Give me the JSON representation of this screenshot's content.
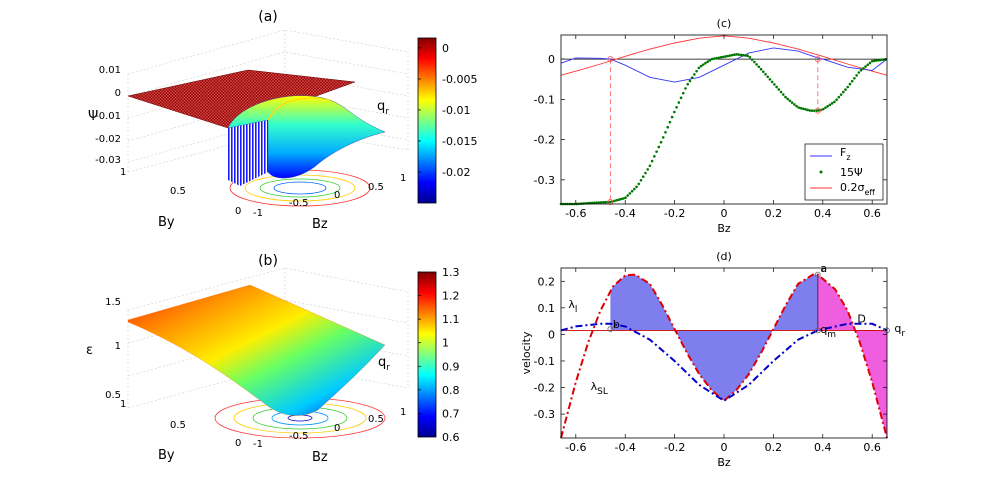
{
  "panels": {
    "a": {
      "title": "(a)",
      "zlabel": "Ψ",
      "xlabel": "Bz",
      "ylabel": "By",
      "annotation": "q",
      "annotation_sub": "r",
      "zticks": [
        "0.01",
        "0",
        "-0.01",
        "-0.02",
        "-0.03"
      ],
      "byticks": [
        "1",
        "0.5",
        "0"
      ],
      "bzticks": [
        "-1",
        "-0.5",
        "0",
        "0.5",
        "1"
      ],
      "colorbar_ticks": [
        "0",
        "-0.005",
        "-0.01",
        "-0.015",
        "-0.02"
      ],
      "colorbar_range": [
        -0.025,
        0.0016
      ]
    },
    "b": {
      "title": "(b)",
      "zlabel": "ε",
      "xlabel": "Bz",
      "ylabel": "By",
      "annotation": "q",
      "annotation_sub": "r",
      "zticks": [
        "1.5",
        "1",
        "0.5"
      ],
      "byticks": [
        "1",
        "0.5",
        "0"
      ],
      "bzticks": [
        "-1",
        "-0.5",
        "0",
        "0.5",
        "1"
      ],
      "colorbar_ticks": [
        "1.3",
        "1.2",
        "1.1",
        "1",
        "0.9",
        "0.8",
        "0.7",
        "0.6"
      ],
      "colorbar_range": [
        0.6,
        1.3
      ]
    }
  },
  "colors": {
    "fz": "#3333ff",
    "psi": "#007700",
    "sigma": "#ff3333",
    "lambda_l": "#0000cc",
    "lambda_sl": "#dd0000",
    "fill_blue": "#7777ee",
    "fill_magenta": "#ee55dd"
  },
  "chart_data": [
    {
      "type": "line",
      "title": "(c)",
      "xlabel": "Bz",
      "ylabel": "",
      "xlim": [
        -0.66,
        0.66
      ],
      "ylim": [
        -0.36,
        0.06
      ],
      "xticks": [
        -0.6,
        -0.4,
        -0.2,
        0,
        0.2,
        0.4,
        0.6
      ],
      "yticks": [
        0,
        -0.1,
        -0.2,
        -0.3
      ],
      "xtick_labels": [
        "-0.6",
        "-0.4",
        "-0.2",
        "0",
        "0.2",
        "0.4",
        "0.6"
      ],
      "ytick_labels": [
        "0",
        "-0.1",
        "-0.2",
        "-0.3"
      ],
      "legend": [
        "F_z",
        "15Ψ",
        "0.2σ_eff"
      ],
      "legend_placement": "bottom-right",
      "marked_points": [
        [
          -0.46,
          0.0
        ],
        [
          -0.46,
          -0.355
        ],
        [
          0.38,
          0.0
        ],
        [
          0.38,
          -0.128
        ]
      ],
      "series": [
        {
          "name": "F_z",
          "x": [
            -0.66,
            -0.6,
            -0.5,
            -0.46,
            -0.4,
            -0.3,
            -0.2,
            -0.1,
            0,
            0.1,
            0.2,
            0.3,
            0.38,
            0.4,
            0.5,
            0.6,
            0.66
          ],
          "y": [
            -0.01,
            0.003,
            0.002,
            0.0,
            -0.015,
            -0.045,
            -0.057,
            -0.045,
            -0.015,
            0.015,
            0.028,
            0.02,
            0.003,
            0.0,
            -0.02,
            -0.028,
            0.0
          ]
        },
        {
          "name": "15Ψ",
          "x": [
            -0.66,
            -0.6,
            -0.55,
            -0.5,
            -0.46,
            -0.4,
            -0.35,
            -0.3,
            -0.25,
            -0.2,
            -0.15,
            -0.1,
            -0.05,
            0,
            0.05,
            0.1,
            0.15,
            0.2,
            0.25,
            0.3,
            0.35,
            0.38,
            0.4,
            0.45,
            0.5,
            0.55,
            0.6,
            0.66
          ],
          "y": [
            -0.36,
            -0.36,
            -0.358,
            -0.356,
            -0.355,
            -0.345,
            -0.315,
            -0.265,
            -0.2,
            -0.13,
            -0.065,
            -0.02,
            0.0,
            0.006,
            0.012,
            0.008,
            -0.025,
            -0.06,
            -0.095,
            -0.12,
            -0.128,
            -0.128,
            -0.125,
            -0.105,
            -0.07,
            -0.03,
            -0.005,
            0.0
          ]
        },
        {
          "name": "0.2σ_eff",
          "x": [
            -0.66,
            -0.6,
            -0.5,
            -0.4,
            -0.3,
            -0.2,
            -0.1,
            0,
            0.1,
            0.2,
            0.3,
            0.4,
            0.5,
            0.6,
            0.66
          ],
          "y": [
            -0.04,
            -0.03,
            -0.012,
            0.007,
            0.025,
            0.04,
            0.052,
            0.058,
            0.052,
            0.04,
            0.025,
            0.007,
            -0.012,
            -0.03,
            -0.04
          ]
        }
      ]
    },
    {
      "type": "line",
      "title": "(d)",
      "xlabel": "Bz",
      "ylabel": "velocity",
      "xlim": [
        -0.66,
        0.66
      ],
      "ylim": [
        -0.39,
        0.25
      ],
      "xticks": [
        -0.6,
        -0.4,
        -0.2,
        0,
        0.2,
        0.4,
        0.6
      ],
      "yticks": [
        0.2,
        0.1,
        0,
        -0.1,
        -0.2,
        -0.3
      ],
      "xtick_labels": [
        "-0.6",
        "-0.4",
        "-0.2",
        "0",
        "0.2",
        "0.4",
        "0.6"
      ],
      "ytick_labels": [
        "0.2",
        "0.1",
        "0",
        "-0.1",
        "-0.2",
        "-0.3"
      ],
      "reference_line": 0.015,
      "labels": [
        {
          "text": "λ",
          "sub": "l",
          "x": -0.63,
          "y": 0.1
        },
        {
          "text": "λ",
          "sub": "SL",
          "x": -0.54,
          "y": -0.21
        },
        {
          "text": "a",
          "x": 0.39,
          "y": 0.235
        },
        {
          "text": "b",
          "x": -0.45,
          "y": 0.025
        },
        {
          "text": "q",
          "sub": "m",
          "x": 0.39,
          "y": 0.005
        },
        {
          "text": "D",
          "x": 0.54,
          "y": 0.045
        },
        {
          "text": "q",
          "sub": "r",
          "x": 0.69,
          "y": 0.01
        }
      ],
      "series": [
        {
          "name": "λ_SL",
          "x": [
            -0.66,
            -0.6,
            -0.55,
            -0.5,
            -0.45,
            -0.4,
            -0.36,
            -0.3,
            -0.25,
            -0.2,
            -0.15,
            -0.1,
            -0.05,
            0,
            0.05,
            0.1,
            0.15,
            0.2,
            0.25,
            0.3,
            0.36,
            0.38,
            0.45,
            0.5,
            0.55,
            0.6,
            0.66
          ],
          "y": [
            -0.39,
            -0.18,
            -0.03,
            0.09,
            0.18,
            0.222,
            0.225,
            0.19,
            0.11,
            0.02,
            -0.07,
            -0.15,
            -0.21,
            -0.25,
            -0.21,
            -0.15,
            -0.07,
            0.02,
            0.11,
            0.19,
            0.225,
            0.225,
            0.17,
            0.09,
            -0.03,
            -0.18,
            -0.39
          ]
        },
        {
          "name": "λ_l",
          "x": [
            -0.66,
            -0.6,
            -0.5,
            -0.46,
            -0.4,
            -0.3,
            -0.2,
            -0.1,
            0,
            0.1,
            0.2,
            0.3,
            0.38,
            0.5,
            0.6,
            0.66
          ],
          "y": [
            0.015,
            0.03,
            0.04,
            0.04,
            0.03,
            -0.02,
            -0.1,
            -0.19,
            -0.25,
            -0.19,
            -0.1,
            -0.02,
            0.015,
            0.04,
            0.04,
            0.015
          ]
        }
      ]
    }
  ]
}
